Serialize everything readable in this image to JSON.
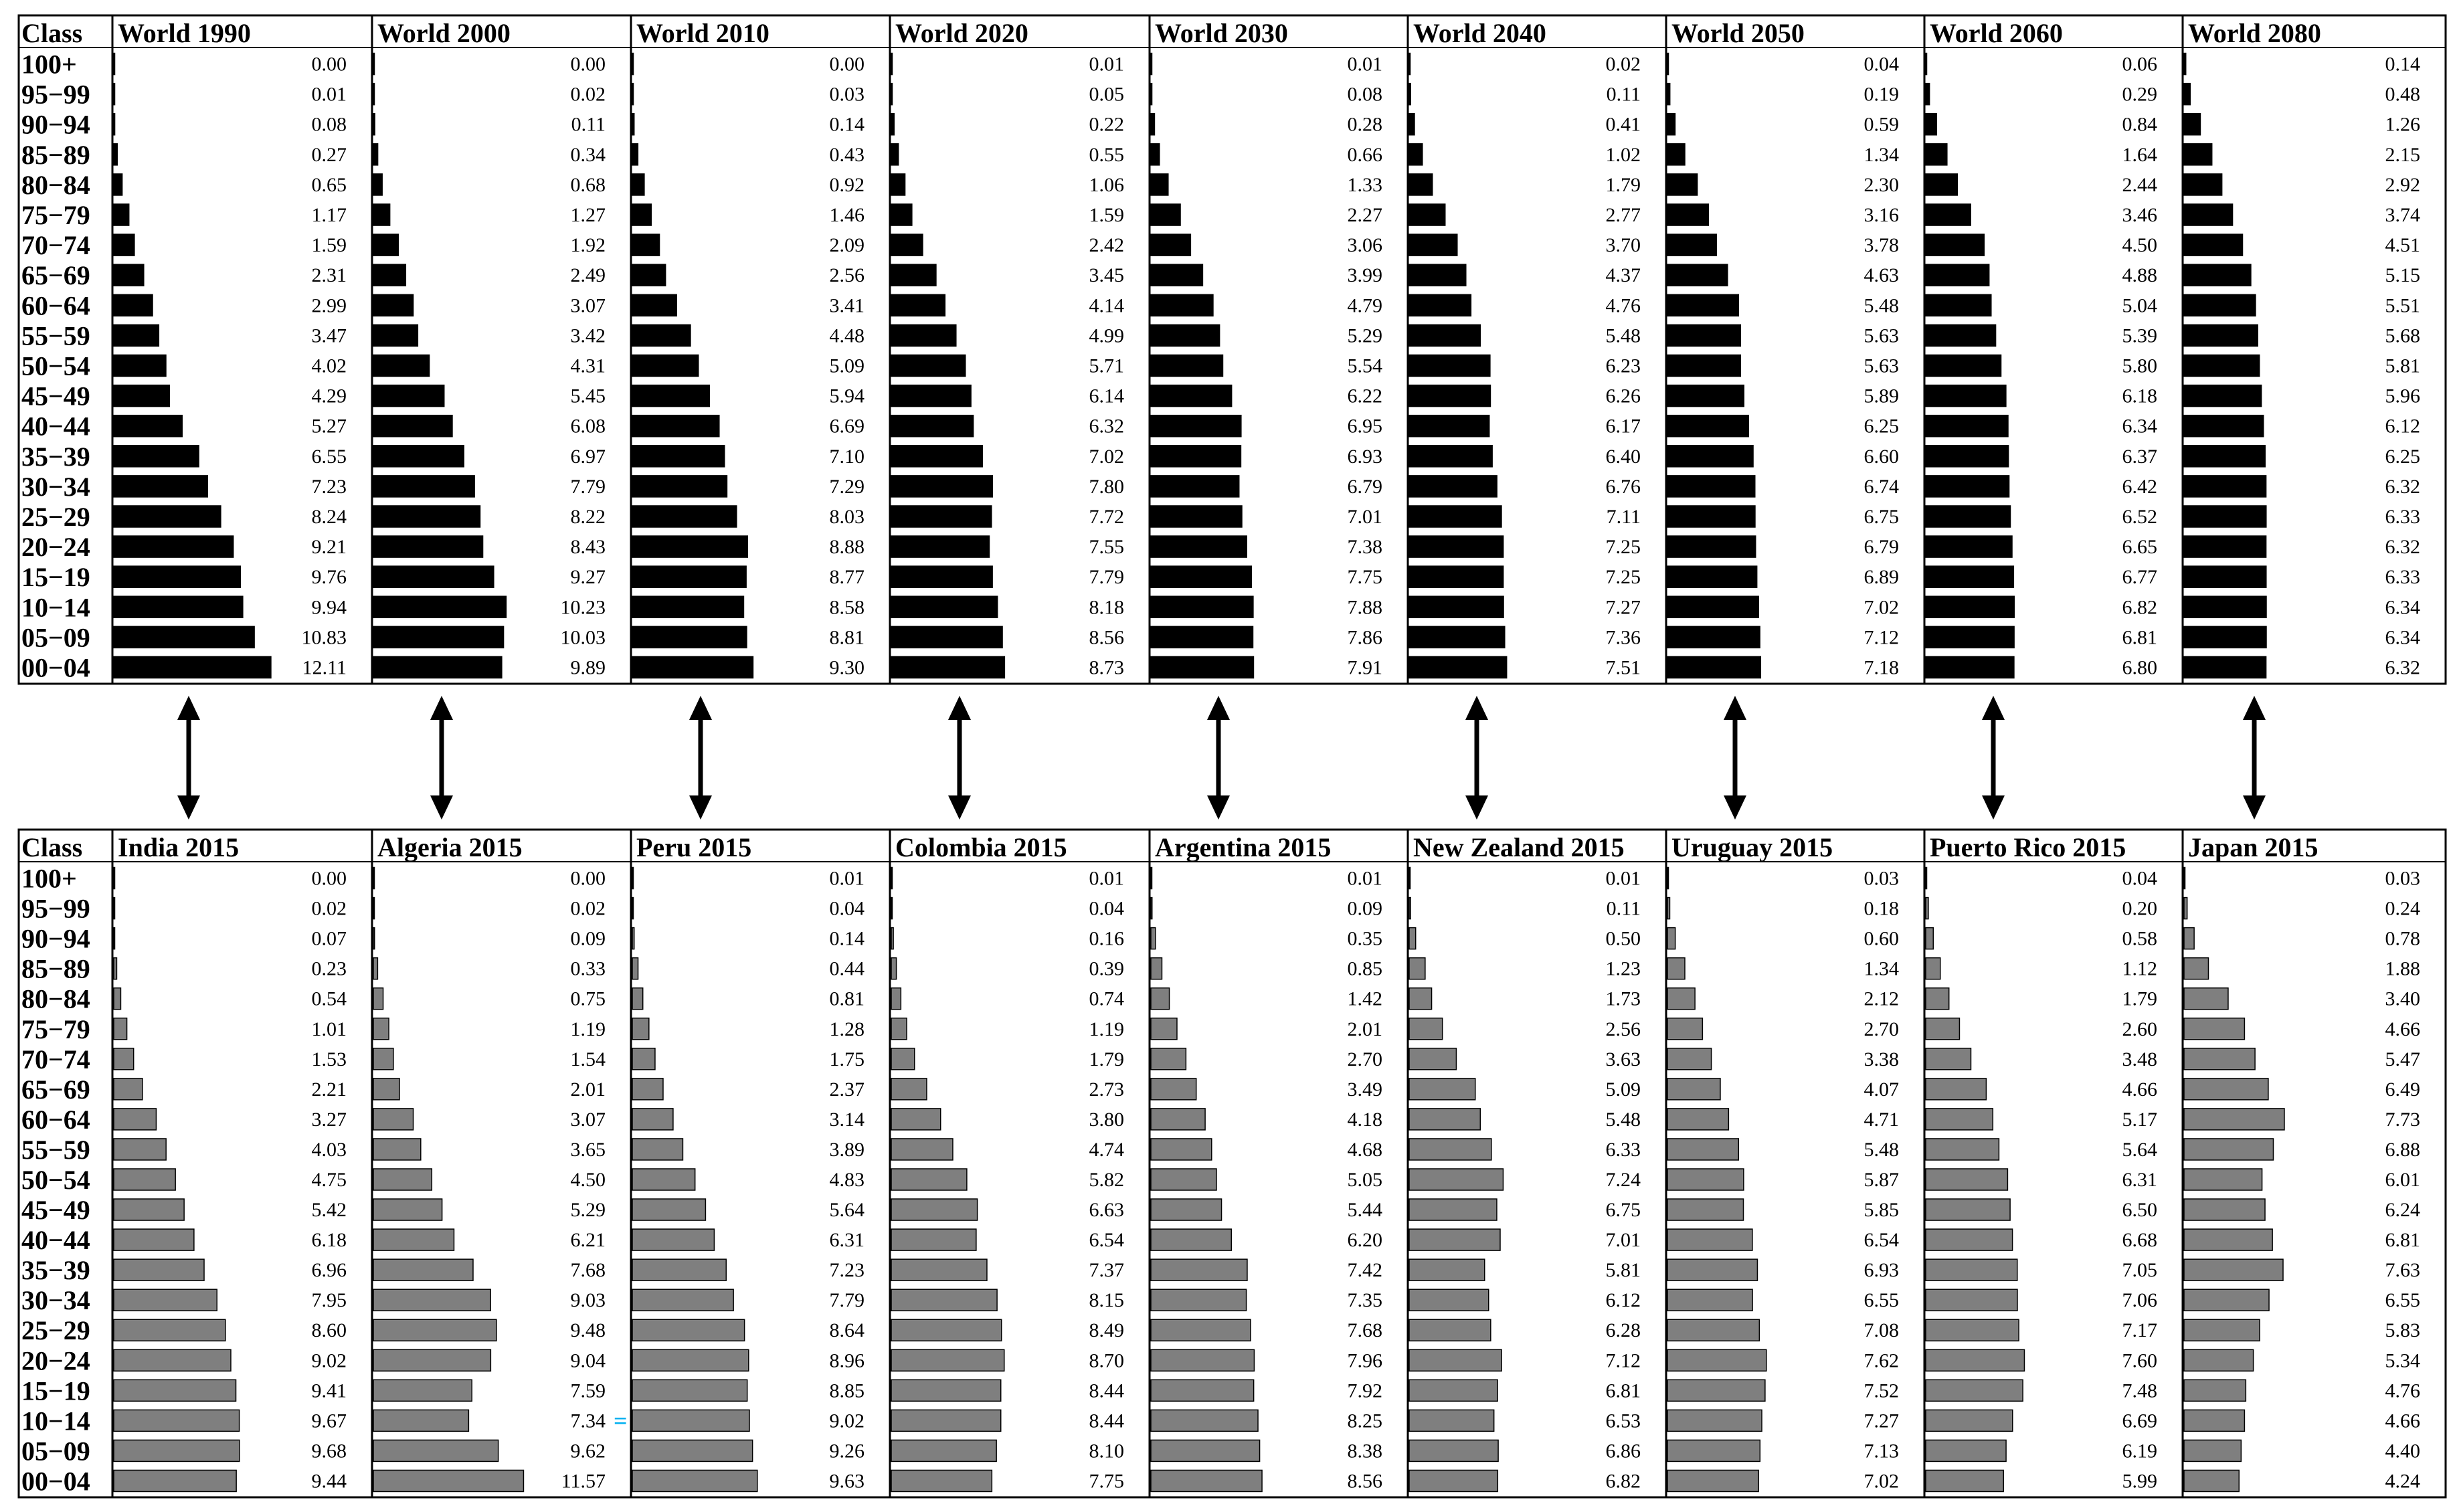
{
  "class_header": "Class",
  "age_classes": [
    "100+",
    "95−99",
    "90−94",
    "85−89",
    "80−84",
    "75−79",
    "70−74",
    "65−69",
    "60−64",
    "55−59",
    "50−54",
    "45−49",
    "40−44",
    "35−39",
    "30−34",
    "25−29",
    "20−24",
    "15−19",
    "10−14",
    "05−09",
    "00−04"
  ],
  "colors": {
    "world_bar": "#000000",
    "country_bar": "#7f7f7f",
    "arrow": "#000000",
    "marker": "#00b0f0"
  },
  "chart_data": [
    {
      "type": "bar",
      "orientation": "horizontal",
      "row": "top",
      "xlabel": "",
      "ylabel": "Class",
      "series": [
        {
          "name": "World 1990",
          "values": [
            0.0,
            0.01,
            0.08,
            0.27,
            0.65,
            1.17,
            1.59,
            2.31,
            2.99,
            3.47,
            4.02,
            4.29,
            5.27,
            6.55,
            7.23,
            8.24,
            9.21,
            9.76,
            9.94,
            10.83,
            12.11
          ]
        },
        {
          "name": "World 2000",
          "values": [
            0.0,
            0.02,
            0.11,
            0.34,
            0.68,
            1.27,
            1.92,
            2.49,
            3.07,
            3.42,
            4.31,
            5.45,
            6.08,
            6.97,
            7.79,
            8.22,
            8.43,
            9.27,
            10.23,
            10.03,
            9.89
          ]
        },
        {
          "name": "World 2010",
          "values": [
            0.0,
            0.03,
            0.14,
            0.43,
            0.92,
            1.46,
            2.09,
            2.56,
            3.41,
            4.48,
            5.09,
            5.94,
            6.69,
            7.1,
            7.29,
            8.03,
            8.88,
            8.77,
            8.58,
            8.81,
            9.3
          ]
        },
        {
          "name": "World 2020",
          "values": [
            0.01,
            0.05,
            0.22,
            0.55,
            1.06,
            1.59,
            2.42,
            3.45,
            4.14,
            4.99,
            5.71,
            6.14,
            6.32,
            7.02,
            7.8,
            7.72,
            7.55,
            7.79,
            8.18,
            8.56,
            8.73
          ]
        },
        {
          "name": "World 2030",
          "values": [
            0.01,
            0.08,
            0.28,
            0.66,
            1.33,
            2.27,
            3.06,
            3.99,
            4.79,
            5.29,
            5.54,
            6.22,
            6.95,
            6.93,
            6.79,
            7.01,
            7.38,
            7.75,
            7.88,
            7.86,
            7.91
          ]
        },
        {
          "name": "World 2040",
          "values": [
            0.02,
            0.11,
            0.41,
            1.02,
            1.79,
            2.77,
            3.7,
            4.37,
            4.76,
            5.48,
            6.23,
            6.26,
            6.17,
            6.4,
            6.76,
            7.11,
            7.25,
            7.25,
            7.27,
            7.36,
            7.51
          ]
        },
        {
          "name": "World 2050",
          "values": [
            0.04,
            0.19,
            0.59,
            1.34,
            2.3,
            3.16,
            3.78,
            4.63,
            5.48,
            5.63,
            5.63,
            5.89,
            6.25,
            6.6,
            6.74,
            6.75,
            6.79,
            6.89,
            7.02,
            7.12,
            7.18
          ]
        },
        {
          "name": "World 2060",
          "values": [
            0.06,
            0.29,
            0.84,
            1.64,
            2.44,
            3.46,
            4.5,
            4.88,
            5.04,
            5.39,
            5.8,
            6.18,
            6.34,
            6.37,
            6.42,
            6.52,
            6.65,
            6.77,
            6.82,
            6.81,
            6.8
          ]
        },
        {
          "name": "World 2080",
          "values": [
            0.14,
            0.48,
            1.26,
            2.15,
            2.92,
            3.74,
            4.51,
            5.15,
            5.51,
            5.68,
            5.81,
            5.96,
            6.12,
            6.25,
            6.32,
            6.33,
            6.32,
            6.33,
            6.34,
            6.34,
            6.32
          ]
        }
      ]
    },
    {
      "type": "bar",
      "orientation": "horizontal",
      "row": "bottom",
      "xlabel": "",
      "ylabel": "Class",
      "series": [
        {
          "name": "India 2015",
          "values": [
            0.0,
            0.02,
            0.07,
            0.23,
            0.54,
            1.01,
            1.53,
            2.21,
            3.27,
            4.03,
            4.75,
            5.42,
            6.18,
            6.96,
            7.95,
            8.6,
            9.02,
            9.41,
            9.67,
            9.68,
            9.44
          ]
        },
        {
          "name": "Algeria 2015",
          "values": [
            0.0,
            0.02,
            0.09,
            0.33,
            0.75,
            1.19,
            1.54,
            2.01,
            3.07,
            3.65,
            4.5,
            5.29,
            6.21,
            7.68,
            9.03,
            9.48,
            9.04,
            7.59,
            7.34,
            9.62,
            11.57
          ]
        },
        {
          "name": "Peru 2015",
          "values": [
            0.01,
            0.04,
            0.14,
            0.44,
            0.81,
            1.28,
            1.75,
            2.37,
            3.14,
            3.89,
            4.83,
            5.64,
            6.31,
            7.23,
            7.79,
            8.64,
            8.96,
            8.85,
            9.02,
            9.26,
            9.63
          ]
        },
        {
          "name": "Colombia 2015",
          "values": [
            0.01,
            0.04,
            0.16,
            0.39,
            0.74,
            1.19,
            1.79,
            2.73,
            3.8,
            4.74,
            5.82,
            6.63,
            6.54,
            7.37,
            8.15,
            8.49,
            8.7,
            8.44,
            8.44,
            8.1,
            7.75
          ]
        },
        {
          "name": "Argentina 2015",
          "values": [
            0.01,
            0.09,
            0.35,
            0.85,
            1.42,
            2.01,
            2.7,
            3.49,
            4.18,
            4.68,
            5.05,
            5.44,
            6.2,
            7.42,
            7.35,
            7.68,
            7.96,
            7.92,
            8.25,
            8.38,
            8.56
          ]
        },
        {
          "name": "New Zealand 2015",
          "values": [
            0.01,
            0.11,
            0.5,
            1.23,
            1.73,
            2.56,
            3.63,
            5.09,
            5.48,
            6.33,
            7.24,
            6.75,
            7.01,
            5.81,
            6.12,
            6.28,
            7.12,
            6.81,
            6.53,
            6.86,
            6.82
          ]
        },
        {
          "name": "Uruguay 2015",
          "values": [
            0.03,
            0.18,
            0.6,
            1.34,
            2.12,
            2.7,
            3.38,
            4.07,
            4.71,
            5.48,
            5.87,
            5.85,
            6.54,
            6.93,
            6.55,
            7.08,
            7.62,
            7.52,
            7.27,
            7.13,
            7.02
          ]
        },
        {
          "name": "Puerto Rico 2015",
          "values": [
            0.04,
            0.2,
            0.58,
            1.12,
            1.79,
            2.6,
            3.48,
            4.66,
            5.17,
            5.64,
            6.31,
            6.5,
            6.68,
            7.05,
            7.06,
            7.17,
            7.6,
            7.48,
            6.69,
            6.19,
            5.99
          ]
        },
        {
          "name": "Japan 2015",
          "values": [
            0.03,
            0.24,
            0.78,
            1.88,
            3.4,
            4.66,
            5.47,
            6.49,
            7.73,
            6.88,
            6.01,
            6.24,
            6.81,
            7.63,
            6.55,
            5.83,
            5.34,
            4.76,
            4.66,
            4.4,
            4.24
          ]
        }
      ],
      "marker": {
        "text": "=",
        "column": "Algeria 2015",
        "age_class": "10−14"
      }
    }
  ]
}
